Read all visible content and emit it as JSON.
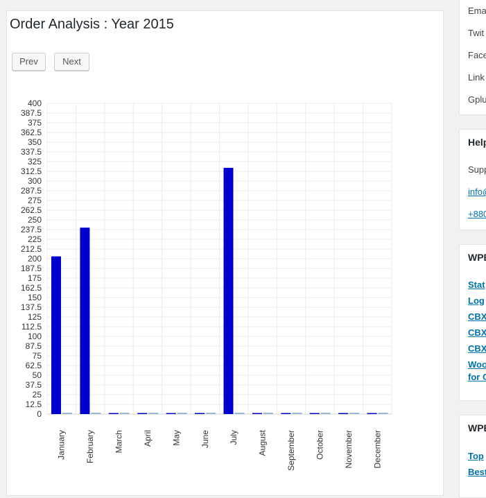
{
  "main": {
    "title": "Order Analysis : Year 2015",
    "prev_label": "Prev",
    "next_label": "Next"
  },
  "sidebar": {
    "share": [
      "Ema",
      "Twit",
      "Face",
      "Link",
      "Gplu"
    ],
    "help": {
      "heading": "Help",
      "support": "Supp",
      "email_link": "info@",
      "phone_link": "+880"
    },
    "plugins": {
      "heading": "WPE",
      "links": [
        "Stat",
        "Log",
        "CBX",
        "CBX",
        "CBX",
        "Woo",
        "for C"
      ]
    },
    "reports": {
      "heading": "WPE",
      "links": [
        "Top",
        "Best"
      ]
    }
  },
  "colors": {
    "series_primary": "#0000cc",
    "series_secondary": "#9ab8d0",
    "grid": "#ececec",
    "link": "#0073aa"
  },
  "chart_data": {
    "type": "bar",
    "title": "",
    "xlabel": "",
    "ylabel": "",
    "ylim": [
      0,
      400
    ],
    "y_ticks": [
      "0",
      "12.5",
      "25",
      "37.5",
      "50",
      "62.5",
      "75",
      "87.5",
      "100",
      "112.5",
      "125",
      "137.5",
      "150",
      "162.5",
      "175",
      "187.5",
      "200",
      "212.5",
      "225",
      "237.5",
      "250",
      "262.5",
      "275",
      "287.5",
      "300",
      "312.5",
      "325",
      "337.5",
      "350",
      "362.5",
      "375",
      "387.5",
      "400"
    ],
    "categories": [
      "January",
      "February",
      "March",
      "April",
      "May",
      "June",
      "July",
      "August",
      "September",
      "October",
      "November",
      "December"
    ],
    "grid": true,
    "legend": "none",
    "series": [
      {
        "values": [
          203,
          240,
          0,
          0,
          0,
          0,
          317,
          0,
          0,
          0,
          0,
          0
        ]
      },
      {
        "values": [
          1,
          1,
          1,
          1,
          1,
          1,
          1,
          1,
          1,
          1,
          1,
          1
        ]
      }
    ]
  }
}
